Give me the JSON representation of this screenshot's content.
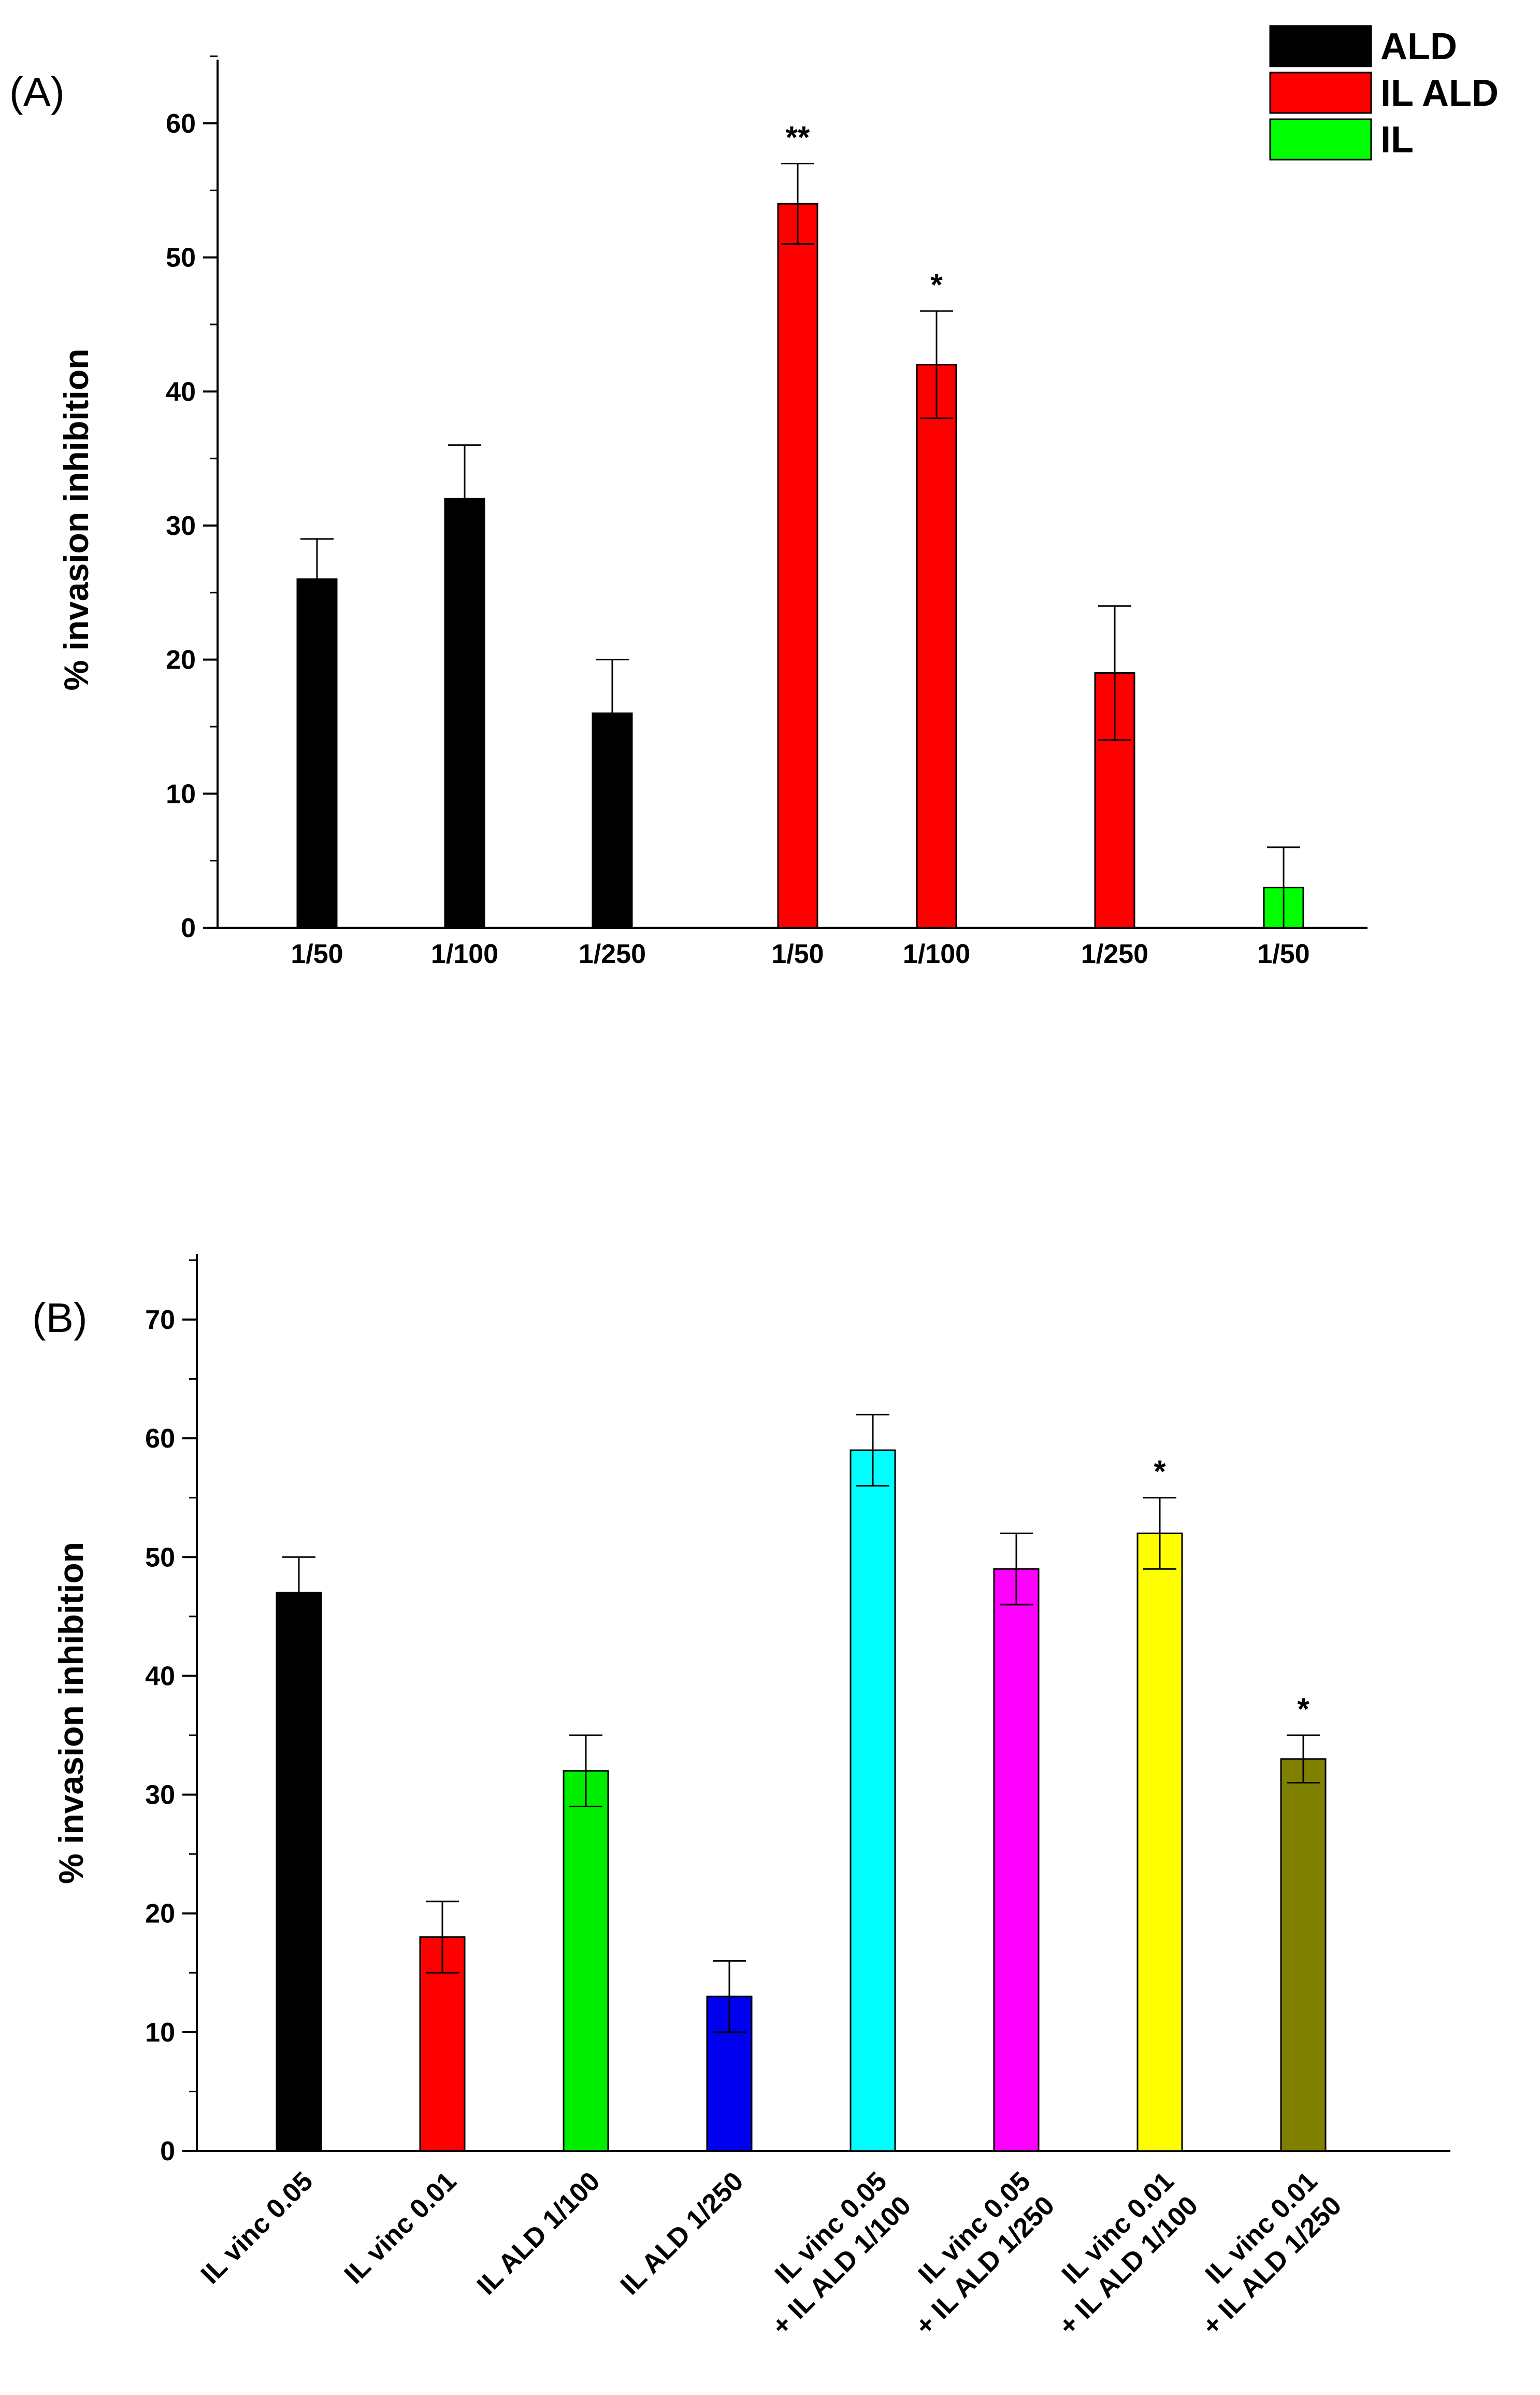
{
  "chart_data": [
    {
      "panel": "(A)",
      "type": "bar",
      "ylabel": "% invasion inhibition",
      "ylim": [
        0,
        65
      ],
      "yticks": [
        0,
        10,
        20,
        30,
        40,
        50,
        60
      ],
      "grid": false,
      "legend": {
        "placement": "top-right",
        "entries": [
          {
            "label": "ALD",
            "color": "#000000"
          },
          {
            "label": "IL ALD",
            "color": "#ff0000"
          },
          {
            "label": "IL",
            "color": "#00ff00"
          }
        ]
      },
      "bars": [
        {
          "category": "1/50",
          "series": "ALD",
          "value": 26,
          "error": 3,
          "color": "#000000",
          "annotation": ""
        },
        {
          "category": "1/100",
          "series": "ALD",
          "value": 32,
          "error": 4,
          "color": "#000000",
          "annotation": ""
        },
        {
          "category": "1/250",
          "series": "ALD",
          "value": 16,
          "error": 4,
          "color": "#000000",
          "annotation": ""
        },
        {
          "category": "1/50",
          "series": "IL ALD",
          "value": 54,
          "error": 3,
          "color": "#ff0000",
          "annotation": "**"
        },
        {
          "category": "1/100",
          "series": "IL ALD",
          "value": 42,
          "error": 4,
          "color": "#ff0000",
          "annotation": "*"
        },
        {
          "category": "1/250",
          "series": "IL ALD",
          "value": 19,
          "error": 5,
          "color": "#ff0000",
          "annotation": ""
        },
        {
          "category": "1/50",
          "series": "IL",
          "value": 3,
          "error": 3,
          "color": "#00ff00",
          "annotation": ""
        }
      ]
    },
    {
      "panel": "(B)",
      "type": "bar",
      "ylabel": "% invasion inhibition",
      "ylim": [
        0,
        75
      ],
      "yticks": [
        0,
        10,
        20,
        30,
        40,
        50,
        60,
        70
      ],
      "grid": false,
      "bars": [
        {
          "label_lines": [
            "IL vinc 0.05"
          ],
          "value": 47,
          "error": 3,
          "color": "#000000",
          "annotation": ""
        },
        {
          "label_lines": [
            "IL vinc 0.01"
          ],
          "value": 18,
          "error": 3,
          "color": "#ff0000",
          "annotation": ""
        },
        {
          "label_lines": [
            "IL ALD 1/100"
          ],
          "value": 32,
          "error": 3,
          "color": "#00ee00",
          "annotation": ""
        },
        {
          "label_lines": [
            "IL ALD 1/250"
          ],
          "value": 13,
          "error": 3,
          "color": "#0000ee",
          "annotation": ""
        },
        {
          "label_lines": [
            "IL vinc 0.05",
            "+ IL ALD 1/100"
          ],
          "value": 59,
          "error": 3,
          "color": "#00ffff",
          "annotation": ""
        },
        {
          "label_lines": [
            "IL vinc 0.05",
            "+ IL ALD 1/250"
          ],
          "value": 49,
          "error": 3,
          "color": "#ff00ff",
          "annotation": ""
        },
        {
          "label_lines": [
            "IL vinc 0.01",
            "+ IL ALD 1/100"
          ],
          "value": 52,
          "error": 3,
          "color": "#ffff00",
          "annotation": "*"
        },
        {
          "label_lines": [
            "IL vinc 0.01",
            "+ IL ALD 1/250"
          ],
          "value": 33,
          "error": 2,
          "color": "#808000",
          "annotation": "*"
        }
      ]
    }
  ]
}
